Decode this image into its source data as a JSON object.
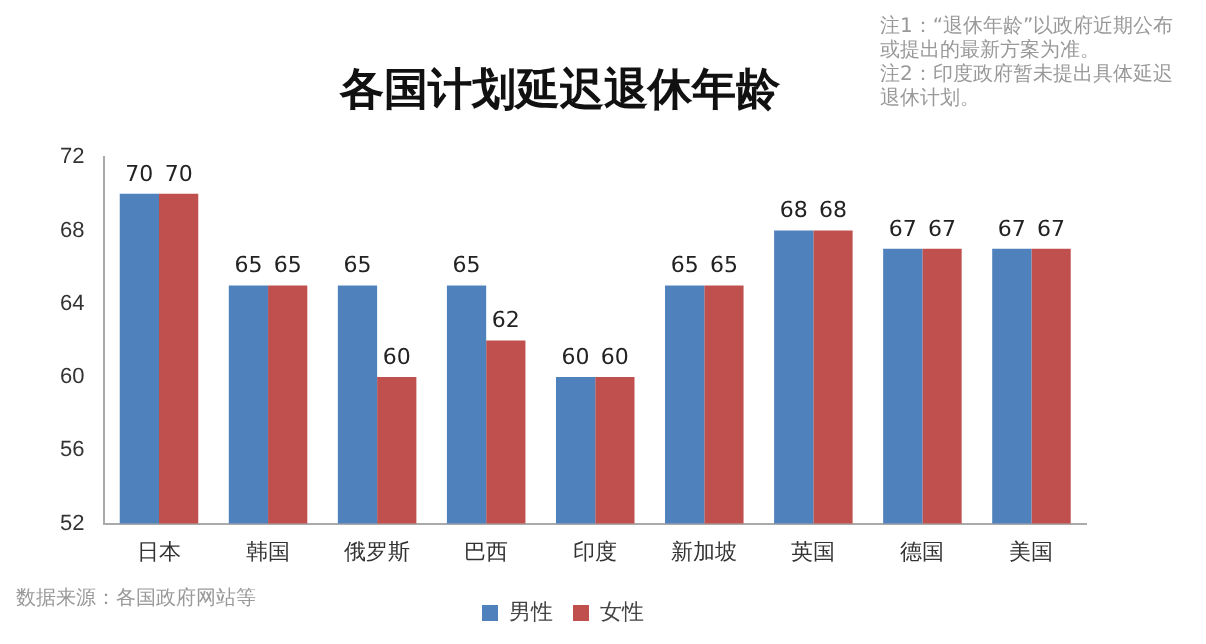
{
  "chart_data": {
    "type": "bar",
    "title": "各国计划延迟退休年龄",
    "categories": [
      "日本",
      "韩国",
      "俄罗斯",
      "巴西",
      "印度",
      "新加坡",
      "英国",
      "德国",
      "美国"
    ],
    "series": [
      {
        "name": "男性",
        "color": "#4f81bd",
        "values": [
          70,
          65,
          65,
          65,
          60,
          65,
          68,
          67,
          67
        ]
      },
      {
        "name": "女性",
        "color": "#c0504d",
        "values": [
          70,
          65,
          60,
          62,
          60,
          65,
          68,
          67,
          67
        ]
      }
    ],
    "ylim": [
      52,
      72
    ],
    "yticks": [
      52,
      56,
      60,
      64,
      68,
      72
    ],
    "grid": false,
    "legend": "bottom",
    "data_labels": true,
    "annotations": [
      "注1：“退休年龄”以政府近期公布或提出的最新方案为准。",
      "注2：印度政府暂未提出具体延迟退休计划。",
      "数据来源：各国政府网站等"
    ]
  }
}
